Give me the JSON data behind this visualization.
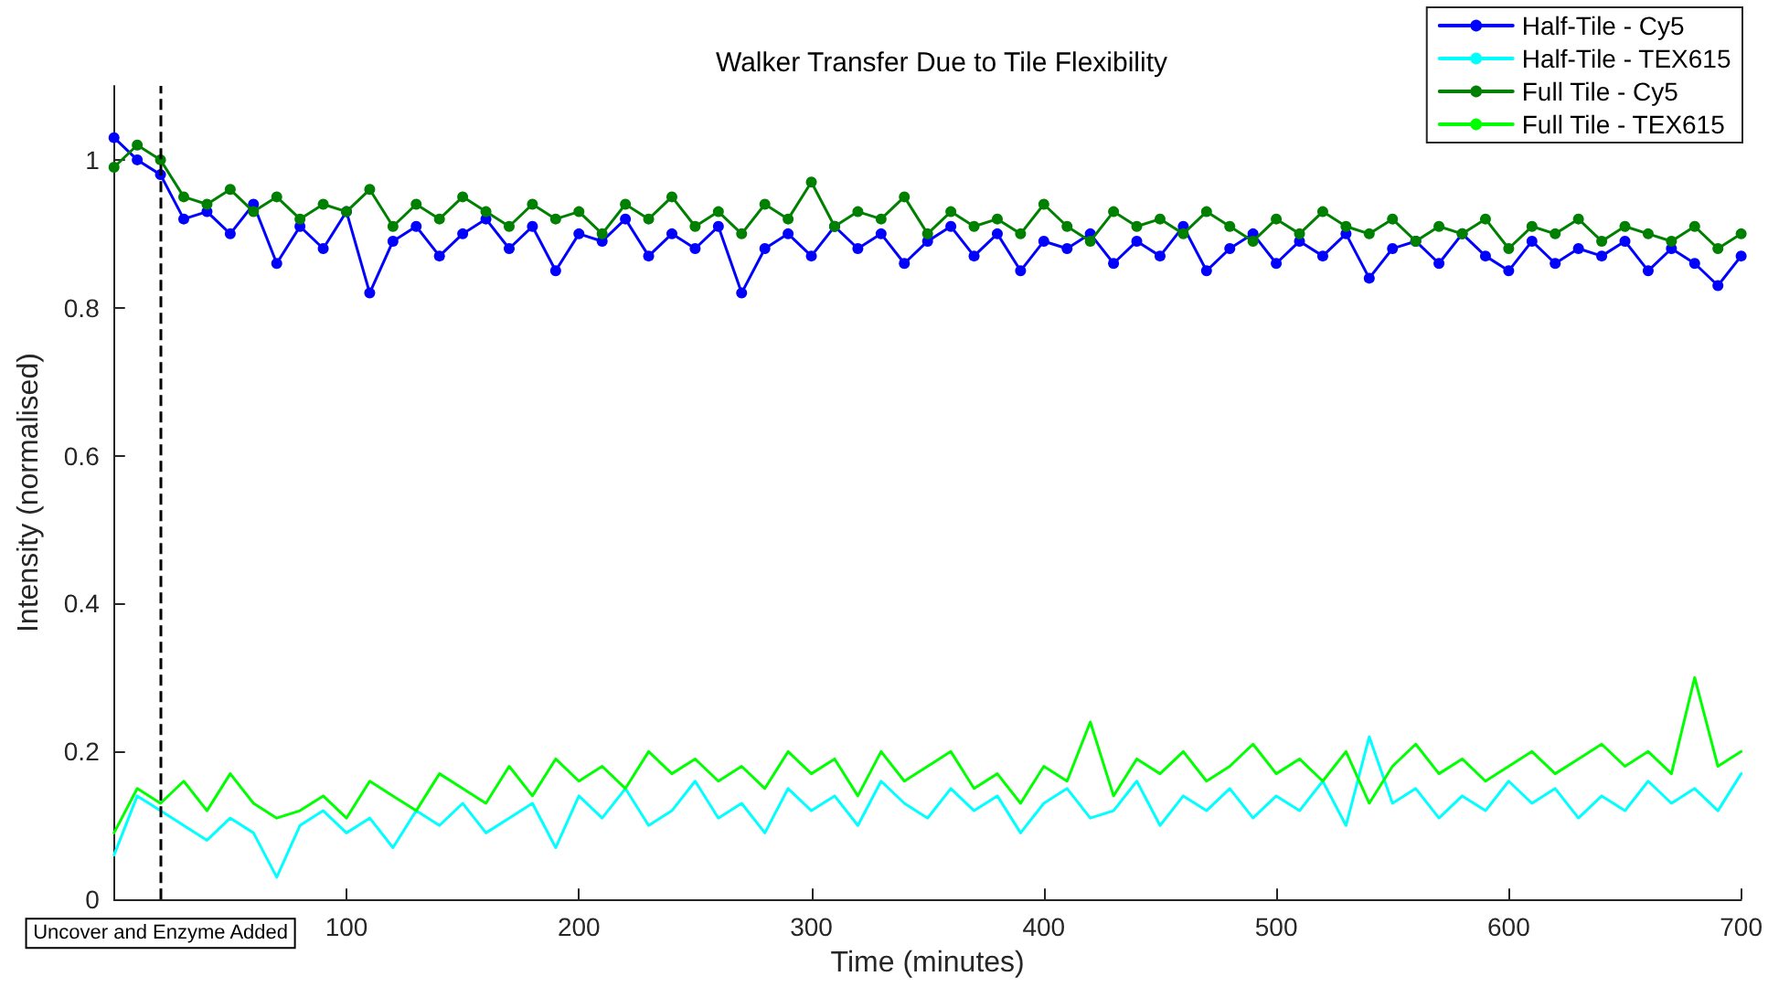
{
  "chart_data": {
    "type": "line",
    "title": "Walker Transfer Due to Tile Flexibility",
    "xlabel": "Time (minutes)",
    "ylabel": "Intensity (normalised)",
    "x": [
      0,
      10,
      20,
      30,
      40,
      50,
      60,
      70,
      80,
      90,
      100,
      110,
      120,
      130,
      140,
      150,
      160,
      170,
      180,
      190,
      200,
      210,
      220,
      230,
      240,
      250,
      260,
      270,
      280,
      290,
      300,
      310,
      320,
      330,
      340,
      350,
      360,
      370,
      380,
      390,
      400,
      410,
      420,
      430,
      440,
      450,
      460,
      470,
      480,
      490,
      500,
      510,
      520,
      530,
      540,
      550,
      560,
      570,
      580,
      590,
      600,
      610,
      620,
      630,
      640,
      650,
      660,
      670,
      680,
      690,
      700
    ],
    "series": [
      {
        "name": "Half-Tile - Cy5",
        "color": "#0000ff",
        "marker": "circle",
        "values": [
          1.03,
          1.0,
          0.98,
          0.92,
          0.93,
          0.9,
          0.94,
          0.86,
          0.91,
          0.88,
          0.93,
          0.82,
          0.89,
          0.91,
          0.87,
          0.9,
          0.92,
          0.88,
          0.91,
          0.85,
          0.9,
          0.89,
          0.92,
          0.87,
          0.9,
          0.88,
          0.91,
          0.82,
          0.88,
          0.9,
          0.87,
          0.91,
          0.88,
          0.9,
          0.86,
          0.89,
          0.91,
          0.87,
          0.9,
          0.85,
          0.89,
          0.88,
          0.9,
          0.86,
          0.89,
          0.87,
          0.91,
          0.85,
          0.88,
          0.9,
          0.86,
          0.89,
          0.87,
          0.9,
          0.84,
          0.88,
          0.89,
          0.86,
          0.9,
          0.87,
          0.85,
          0.89,
          0.86,
          0.88,
          0.87,
          0.89,
          0.85,
          0.88,
          0.86,
          0.83,
          0.87
        ]
      },
      {
        "name": "Half-Tile - TEX615",
        "color": "#00ffff",
        "marker": "none",
        "values": [
          0.06,
          0.14,
          0.12,
          0.1,
          0.08,
          0.11,
          0.09,
          0.03,
          0.1,
          0.12,
          0.09,
          0.11,
          0.07,
          0.12,
          0.1,
          0.13,
          0.09,
          0.11,
          0.13,
          0.07,
          0.14,
          0.11,
          0.15,
          0.1,
          0.12,
          0.16,
          0.11,
          0.13,
          0.09,
          0.15,
          0.12,
          0.14,
          0.1,
          0.16,
          0.13,
          0.11,
          0.15,
          0.12,
          0.14,
          0.09,
          0.13,
          0.15,
          0.11,
          0.12,
          0.16,
          0.1,
          0.14,
          0.12,
          0.15,
          0.11,
          0.14,
          0.12,
          0.16,
          0.1,
          0.22,
          0.13,
          0.15,
          0.11,
          0.14,
          0.12,
          0.16,
          0.13,
          0.15,
          0.11,
          0.14,
          0.12,
          0.16,
          0.13,
          0.15,
          0.12,
          0.17
        ]
      },
      {
        "name": "Full Tile - Cy5",
        "color": "#008000",
        "marker": "circle",
        "values": [
          0.99,
          1.02,
          1.0,
          0.95,
          0.94,
          0.96,
          0.93,
          0.95,
          0.92,
          0.94,
          0.93,
          0.96,
          0.91,
          0.94,
          0.92,
          0.95,
          0.93,
          0.91,
          0.94,
          0.92,
          0.93,
          0.9,
          0.94,
          0.92,
          0.95,
          0.91,
          0.93,
          0.9,
          0.94,
          0.92,
          0.97,
          0.91,
          0.93,
          0.92,
          0.95,
          0.9,
          0.93,
          0.91,
          0.92,
          0.9,
          0.94,
          0.91,
          0.89,
          0.93,
          0.91,
          0.92,
          0.9,
          0.93,
          0.91,
          0.89,
          0.92,
          0.9,
          0.93,
          0.91,
          0.9,
          0.92,
          0.89,
          0.91,
          0.9,
          0.92,
          0.88,
          0.91,
          0.9,
          0.92,
          0.89,
          0.91,
          0.9,
          0.89,
          0.91,
          0.88,
          0.9
        ]
      },
      {
        "name": "Full Tile - TEX615",
        "color": "#00ff00",
        "marker": "none",
        "values": [
          0.09,
          0.15,
          0.13,
          0.16,
          0.12,
          0.17,
          0.13,
          0.11,
          0.12,
          0.14,
          0.11,
          0.16,
          0.14,
          0.12,
          0.17,
          0.15,
          0.13,
          0.18,
          0.14,
          0.19,
          0.16,
          0.18,
          0.15,
          0.2,
          0.17,
          0.19,
          0.16,
          0.18,
          0.15,
          0.2,
          0.17,
          0.19,
          0.14,
          0.2,
          0.16,
          0.18,
          0.2,
          0.15,
          0.17,
          0.13,
          0.18,
          0.16,
          0.24,
          0.14,
          0.19,
          0.17,
          0.2,
          0.16,
          0.18,
          0.21,
          0.17,
          0.19,
          0.16,
          0.2,
          0.13,
          0.18,
          0.21,
          0.17,
          0.19,
          0.16,
          0.18,
          0.2,
          0.17,
          0.19,
          0.21,
          0.18,
          0.2,
          0.17,
          0.3,
          0.18,
          0.2
        ]
      }
    ],
    "xlim": [
      0,
      700
    ],
    "xticks": [
      100,
      200,
      300,
      400,
      500,
      600,
      700
    ],
    "ylim": [
      0,
      1.1
    ],
    "yticks": [
      0,
      0.2,
      0.4,
      0.6,
      0.8,
      1
    ],
    "ref_lines": [
      {
        "axis": "x",
        "value": 20,
        "label": "Uncover and Enzyme Added",
        "color": "#000000",
        "line_style": "dashed"
      }
    ],
    "legend": "top right",
    "grid": false,
    "line_style": "solid"
  }
}
